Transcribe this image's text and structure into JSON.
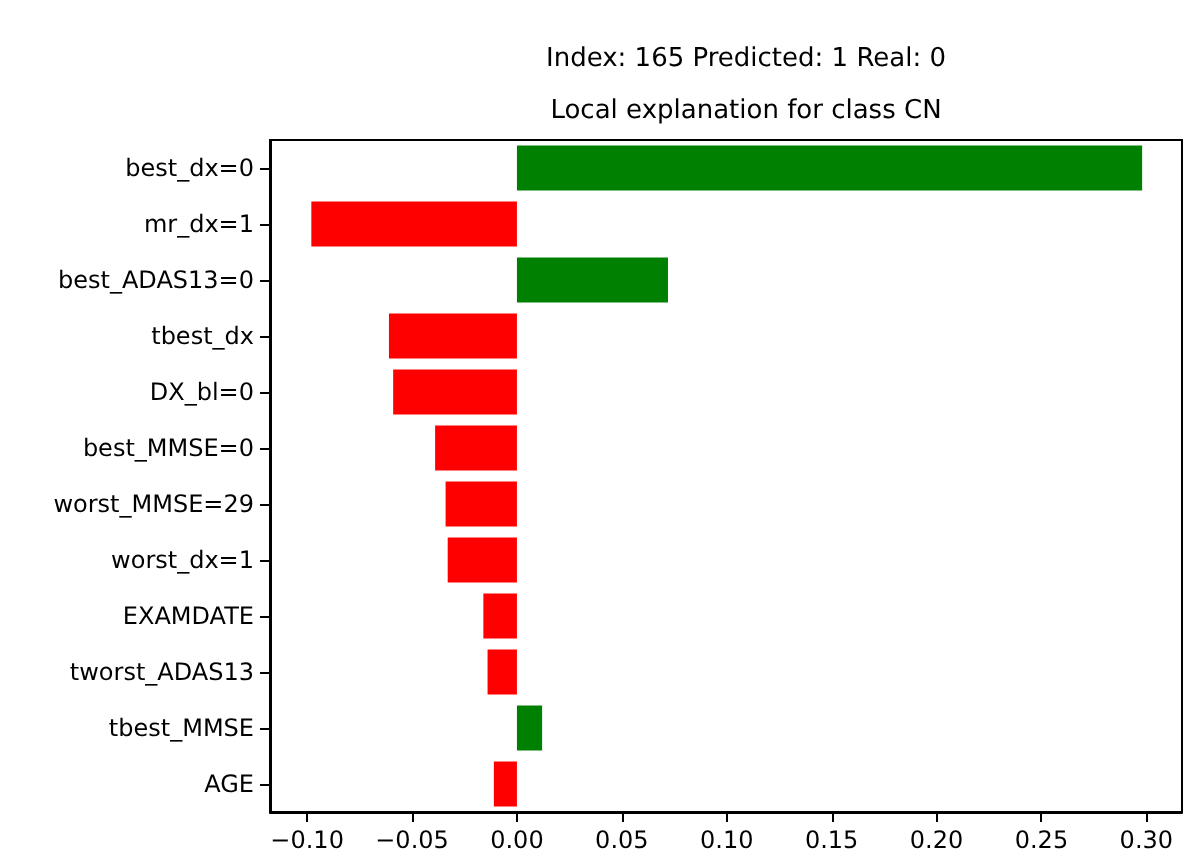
{
  "chart_data": {
    "type": "bar",
    "orientation": "horizontal",
    "title": "Index: 165 Predicted: 1 Real: 0",
    "subtitle": "Local explanation for class CN",
    "categories": [
      "best_dx=0",
      "mr_dx=1",
      "best_ADAS13=0",
      "tbest_dx",
      "DX_bl=0",
      "best_MMSE=0",
      "worst_MMSE=29",
      "worst_dx=1",
      "EXAMDATE",
      "tworst_ADAS13",
      "tbest_MMSE",
      "AGE"
    ],
    "values": [
      0.298,
      -0.098,
      0.072,
      -0.061,
      -0.059,
      -0.039,
      -0.034,
      -0.033,
      -0.016,
      -0.014,
      0.012,
      -0.011
    ],
    "colors": [
      "#008000",
      "#ff0000",
      "#008000",
      "#ff0000",
      "#ff0000",
      "#ff0000",
      "#ff0000",
      "#ff0000",
      "#ff0000",
      "#ff0000",
      "#008000",
      "#ff0000"
    ],
    "xlim": [
      -0.1177,
      0.317
    ],
    "xticks": [
      {
        "value": -0.1,
        "label": "−0.10"
      },
      {
        "value": -0.05,
        "label": "−0.05"
      },
      {
        "value": 0,
        "label": "0.00"
      },
      {
        "value": 0.05,
        "label": "0.05"
      },
      {
        "value": 0.1,
        "label": "0.10"
      },
      {
        "value": 0.15,
        "label": "0.15"
      },
      {
        "value": 0.2,
        "label": "0.20"
      },
      {
        "value": 0.25,
        "label": "0.25"
      },
      {
        "value": 0.3,
        "label": "0.30"
      }
    ],
    "grid": false
  }
}
